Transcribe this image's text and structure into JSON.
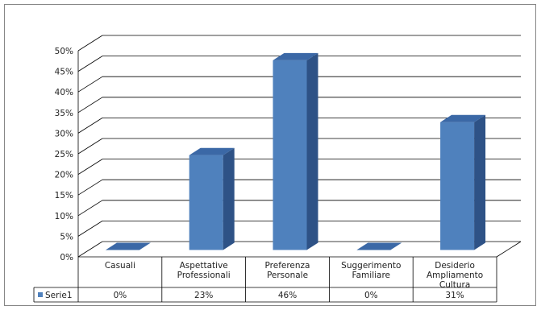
{
  "chart_data": {
    "type": "bar",
    "title": "",
    "xlabel": "",
    "ylabel": "",
    "categories": [
      [
        "Casuali"
      ],
      [
        "Aspettative",
        "Professionali"
      ],
      [
        "Preferenza",
        "Personale"
      ],
      [
        "Suggerimento",
        "Familiare"
      ],
      [
        "Desiderio",
        "Ampliamento",
        "Cultura"
      ]
    ],
    "series": [
      {
        "name": "Serie1",
        "values": [
          0,
          23,
          46,
          0,
          31
        ],
        "labels": [
          "0%",
          "23%",
          "46%",
          "0%",
          "31%"
        ],
        "color": "#4F81BD"
      }
    ],
    "ylim": [
      0,
      50
    ],
    "yticks": [
      "0%",
      "5%",
      "10%",
      "15%",
      "20%",
      "25%",
      "30%",
      "35%",
      "40%",
      "45%",
      "50%"
    ],
    "grid": true,
    "data_table": true,
    "three_d": true
  }
}
